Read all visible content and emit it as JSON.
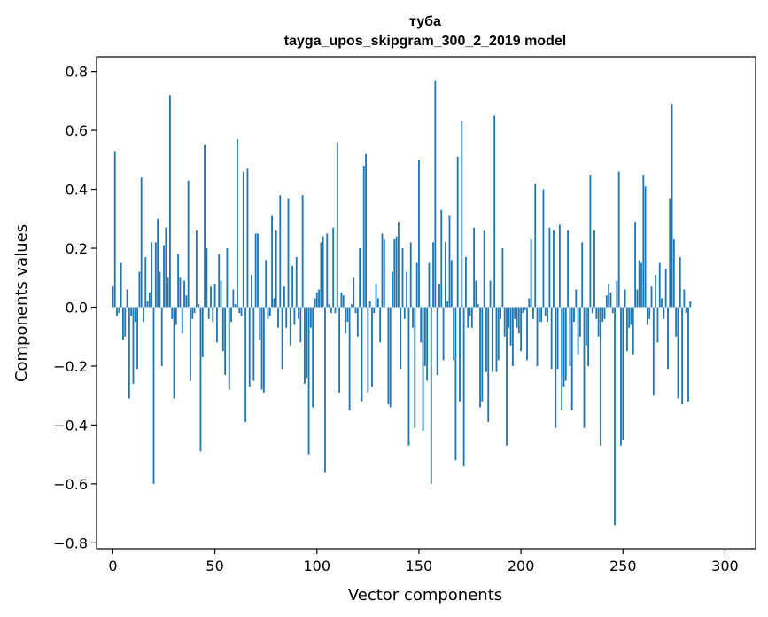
{
  "chart_data": {
    "type": "bar",
    "title": "туба",
    "subtitle": "tayga_upos_skipgram_300_2_2019 model",
    "xlabel": "Vector components",
    "ylabel": "Components values",
    "xlim": [
      -8,
      315
    ],
    "ylim": [
      -0.82,
      0.85
    ],
    "xticks": [
      0,
      50,
      100,
      150,
      200,
      250,
      300
    ],
    "yticks": [
      -0.8,
      -0.6,
      -0.4,
      -0.2,
      0.0,
      0.2,
      0.4,
      0.6,
      0.8
    ],
    "ytick_labels": [
      "−0.8",
      "−0.6",
      "−0.4",
      "−0.2",
      "0.0",
      "0.2",
      "0.4",
      "0.6",
      "0.8"
    ],
    "bar_color": "#1f77b4",
    "grid": false,
    "values": [
      0.07,
      0.53,
      -0.03,
      -0.02,
      0.15,
      -0.11,
      -0.1,
      0.06,
      -0.31,
      -0.03,
      -0.26,
      -0.05,
      -0.21,
      0.12,
      0.44,
      -0.05,
      0.17,
      0.02,
      0.05,
      0.22,
      -0.6,
      0.22,
      0.3,
      0.12,
      -0.2,
      0.21,
      0.27,
      0.1,
      0.72,
      -0.04,
      -0.31,
      -0.06,
      0.18,
      0.1,
      -0.09,
      0.09,
      0.04,
      0.43,
      -0.25,
      -0.04,
      -0.02,
      0.26,
      0.01,
      -0.49,
      -0.17,
      0.55,
      0.2,
      -0.04,
      0.07,
      -0.05,
      0.08,
      -0.12,
      0.18,
      0.09,
      -0.15,
      -0.23,
      0.2,
      -0.28,
      -0.05,
      0.06,
      0.01,
      0.57,
      -0.02,
      -0.03,
      0.46,
      -0.39,
      0.47,
      -0.27,
      0.11,
      -0.25,
      0.25,
      0.25,
      -0.11,
      -0.28,
      -0.29,
      0.16,
      -0.04,
      -0.03,
      0.31,
      0.03,
      0.26,
      -0.07,
      0.38,
      -0.21,
      0.07,
      -0.07,
      0.37,
      -0.13,
      0.14,
      -0.06,
      0.17,
      -0.04,
      -0.12,
      0.38,
      -0.26,
      -0.24,
      -0.5,
      -0.07,
      -0.34,
      0.03,
      0.05,
      0.06,
      0.22,
      0.24,
      -0.56,
      0.25,
      0.01,
      -0.02,
      0.27,
      -0.02,
      0.56,
      -0.29,
      0.05,
      0.04,
      -0.09,
      -0.05,
      -0.35,
      0.01,
      0.1,
      -0.02,
      -0.1,
      0.2,
      -0.32,
      0.48,
      0.52,
      -0.29,
      0.02,
      -0.27,
      -0.02,
      0.08,
      0.03,
      -0.12,
      0.25,
      0.23,
      0.0,
      -0.33,
      -0.34,
      0.12,
      0.23,
      0.24,
      0.29,
      -0.21,
      0.2,
      -0.04,
      0.12,
      -0.47,
      0.22,
      -0.07,
      -0.41,
      0.15,
      0.5,
      -0.12,
      -0.42,
      -0.2,
      -0.25,
      0.15,
      -0.6,
      0.22,
      0.77,
      -0.23,
      0.08,
      0.33,
      -0.18,
      0.22,
      0.02,
      0.31,
      0.16,
      -0.18,
      -0.52,
      0.51,
      -0.32,
      0.63,
      -0.54,
      0.17,
      -0.07,
      -0.03,
      -0.07,
      0.27,
      0.09,
      0.01,
      -0.34,
      -0.32,
      0.26,
      -0.22,
      -0.39,
      0.09,
      -0.22,
      0.65,
      -0.22,
      -0.18,
      -0.04,
      0.2,
      -0.1,
      -0.47,
      -0.07,
      -0.13,
      -0.2,
      -0.04,
      -0.07,
      -0.09,
      -0.15,
      -0.02,
      -0.01,
      -0.18,
      0.03,
      0.23,
      -0.04,
      0.42,
      -0.2,
      -0.05,
      -0.05,
      0.4,
      -0.03,
      -0.05,
      0.27,
      -0.21,
      0.26,
      -0.41,
      -0.21,
      0.28,
      -0.35,
      -0.27,
      -0.25,
      0.26,
      -0.2,
      -0.35,
      -0.05,
      0.06,
      -0.16,
      -0.1,
      0.22,
      -0.41,
      -0.13,
      -0.2,
      0.45,
      -0.02,
      0.26,
      -0.04,
      -0.1,
      -0.47,
      -0.05,
      -0.04,
      0.04,
      0.08,
      0.05,
      -0.02,
      -0.74,
      0.09,
      0.46,
      -0.47,
      -0.45,
      0.06,
      -0.15,
      -0.07,
      -0.06,
      -0.16,
      0.29,
      0.06,
      0.16,
      0.15,
      0.45,
      0.41,
      -0.06,
      -0.04,
      0.07,
      -0.3,
      0.11,
      -0.12,
      0.15,
      0.03,
      -0.04,
      0.13,
      -0.21,
      0.37,
      0.69,
      0.23,
      -0.1,
      -0.31,
      0.17,
      -0.33,
      0.06,
      -0.02,
      -0.32,
      0.02
    ]
  }
}
